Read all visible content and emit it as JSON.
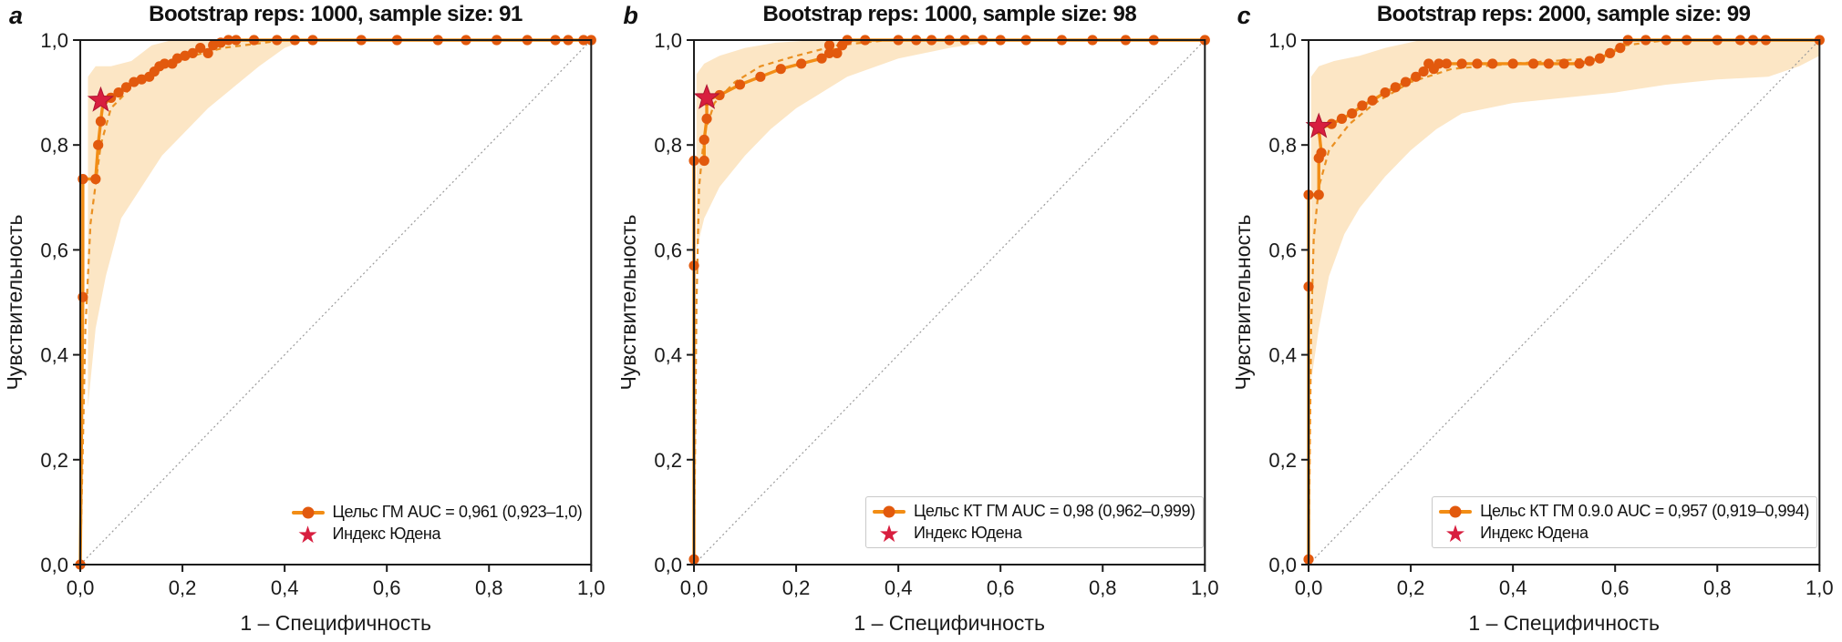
{
  "figure": {
    "type": "roc-figure",
    "description_visible_text_only": true
  },
  "colors": {
    "curve_line": "#F28D15",
    "curve_marker": "#E2590D",
    "smooth_dash": "#E8860F",
    "band_fill": "#F4A229",
    "band_opacity": 0.27,
    "youden_star": "#D81E3F",
    "youden_star_edge": "#AD1432",
    "diagonal": "#9a9a9a",
    "axis": "#1a1a1a"
  },
  "axes_shared": {
    "x_label": "1 – Специфичность",
    "y_label": "Чувствительность",
    "x_tick_labels": [
      "0,0",
      "0,2",
      "0,4",
      "0,6",
      "0,8",
      "1,0"
    ],
    "y_tick_labels": [
      "0,0",
      "0,2",
      "0,4",
      "0,6",
      "0,8",
      "1,0"
    ],
    "x_tick_values": [
      0,
      0.2,
      0.4,
      0.6,
      0.8,
      1.0
    ],
    "y_tick_values": [
      0,
      0.2,
      0.4,
      0.6,
      0.8,
      1.0
    ],
    "xlim": [
      0,
      1
    ],
    "ylim": [
      0,
      1
    ],
    "grid": false,
    "diagonal_reference_line": true
  },
  "chart_data": [
    {
      "type": "line",
      "panel_letter": "a",
      "title": "Bootstrap reps: 1000, sample size: 91",
      "xlabel": "1 – Специфичность",
      "ylabel": "Чувствительность",
      "legend": {
        "position": "lower right",
        "curve_label": "Цельс ГМ AUC = 0,961 (0,923–1,0)",
        "youden_label": "Индекс Юдена"
      },
      "auc_display": "0,961",
      "auc_ci_display": "0,923–1,0",
      "youden_point": [
        0.04,
        0.885
      ],
      "roc_points": [
        [
          0,
          0
        ],
        [
          0.005,
          0.51
        ],
        [
          0.005,
          0.735
        ],
        [
          0.03,
          0.735
        ],
        [
          0.035,
          0.8
        ],
        [
          0.04,
          0.845
        ],
        [
          0.045,
          0.885
        ],
        [
          0.06,
          0.89
        ],
        [
          0.075,
          0.9
        ],
        [
          0.09,
          0.91
        ],
        [
          0.105,
          0.92
        ],
        [
          0.12,
          0.925
        ],
        [
          0.135,
          0.93
        ],
        [
          0.145,
          0.94
        ],
        [
          0.155,
          0.95
        ],
        [
          0.165,
          0.955
        ],
        [
          0.18,
          0.955
        ],
        [
          0.19,
          0.965
        ],
        [
          0.205,
          0.97
        ],
        [
          0.22,
          0.975
        ],
        [
          0.235,
          0.985
        ],
        [
          0.25,
          0.975
        ],
        [
          0.26,
          0.99
        ],
        [
          0.275,
          0.995
        ],
        [
          0.29,
          1.0
        ],
        [
          0.305,
          1.0
        ],
        [
          0.34,
          1.0
        ],
        [
          0.385,
          1.0
        ],
        [
          0.42,
          1.0
        ],
        [
          0.455,
          1.0
        ],
        [
          0.55,
          1.0
        ],
        [
          0.62,
          1.0
        ],
        [
          0.7,
          1.0
        ],
        [
          0.755,
          1.0
        ],
        [
          0.815,
          1.0
        ],
        [
          0.875,
          1.0
        ],
        [
          0.93,
          1.0
        ],
        [
          0.955,
          1.0
        ],
        [
          0.985,
          1.0
        ],
        [
          1.0,
          1.0
        ]
      ],
      "smooth_curve": [
        [
          0,
          0
        ],
        [
          0.01,
          0.45
        ],
        [
          0.02,
          0.65
        ],
        [
          0.04,
          0.8
        ],
        [
          0.06,
          0.87
        ],
        [
          0.1,
          0.91
        ],
        [
          0.15,
          0.945
        ],
        [
          0.2,
          0.965
        ],
        [
          0.28,
          0.985
        ],
        [
          0.4,
          1.0
        ],
        [
          1,
          1
        ]
      ],
      "confidence_band": [
        [
          0.015,
          0.3
        ],
        [
          0.03,
          0.45
        ],
        [
          0.05,
          0.55
        ],
        [
          0.08,
          0.66
        ],
        [
          0.12,
          0.72
        ],
        [
          0.16,
          0.78
        ],
        [
          0.2,
          0.82
        ],
        [
          0.25,
          0.87
        ],
        [
          0.3,
          0.91
        ],
        [
          0.35,
          0.95
        ],
        [
          0.4,
          0.985
        ],
        [
          0.44,
          1.0
        ],
        [
          0.18,
          1.0
        ],
        [
          0.14,
          0.99
        ],
        [
          0.1,
          0.96
        ],
        [
          0.06,
          0.95
        ],
        [
          0.03,
          0.95
        ],
        [
          0.015,
          0.93
        ]
      ]
    },
    {
      "type": "line",
      "panel_letter": "b",
      "title": "Bootstrap reps: 1000, sample size: 98",
      "xlabel": "1 – Специфичность",
      "ylabel": "Чувствительность",
      "legend": {
        "position": "lower right",
        "curve_label": "Цельс КТ ГМ AUC = 0,98 (0,962–0,999)",
        "youden_label": "Индекс Юдена"
      },
      "auc_display": "0,98",
      "auc_ci_display": "0,962–0,999",
      "youden_point": [
        0.025,
        0.89
      ],
      "roc_points": [
        [
          0,
          0.01
        ],
        [
          0,
          0.57
        ],
        [
          0,
          0.77
        ],
        [
          0.02,
          0.77
        ],
        [
          0.02,
          0.81
        ],
        [
          0.025,
          0.85
        ],
        [
          0.025,
          0.885
        ],
        [
          0.05,
          0.895
        ],
        [
          0.09,
          0.915
        ],
        [
          0.13,
          0.93
        ],
        [
          0.17,
          0.945
        ],
        [
          0.21,
          0.955
        ],
        [
          0.25,
          0.965
        ],
        [
          0.265,
          0.975
        ],
        [
          0.265,
          0.99
        ],
        [
          0.28,
          0.975
        ],
        [
          0.29,
          0.99
        ],
        [
          0.3,
          1.0
        ],
        [
          0.335,
          1.0
        ],
        [
          0.4,
          1.0
        ],
        [
          0.435,
          1.0
        ],
        [
          0.465,
          1.0
        ],
        [
          0.5,
          1.0
        ],
        [
          0.53,
          1.0
        ],
        [
          0.565,
          1.0
        ],
        [
          0.6,
          1.0
        ],
        [
          0.65,
          1.0
        ],
        [
          0.72,
          1.0
        ],
        [
          0.78,
          1.0
        ],
        [
          0.845,
          1.0
        ],
        [
          0.9,
          1.0
        ],
        [
          1.0,
          1.0
        ]
      ],
      "smooth_curve": [
        [
          0,
          0
        ],
        [
          0.005,
          0.5
        ],
        [
          0.01,
          0.72
        ],
        [
          0.02,
          0.82
        ],
        [
          0.04,
          0.88
        ],
        [
          0.08,
          0.92
        ],
        [
          0.13,
          0.95
        ],
        [
          0.2,
          0.97
        ],
        [
          0.28,
          0.99
        ],
        [
          0.38,
          1.0
        ],
        [
          1,
          1
        ]
      ],
      "confidence_band": [
        [
          0.005,
          0.6
        ],
        [
          0.02,
          0.66
        ],
        [
          0.05,
          0.72
        ],
        [
          0.1,
          0.78
        ],
        [
          0.15,
          0.83
        ],
        [
          0.2,
          0.87
        ],
        [
          0.25,
          0.9
        ],
        [
          0.3,
          0.93
        ],
        [
          0.4,
          0.965
        ],
        [
          0.5,
          0.985
        ],
        [
          0.6,
          1.0
        ],
        [
          0.24,
          1.0
        ],
        [
          0.16,
          0.995
        ],
        [
          0.1,
          0.985
        ],
        [
          0.05,
          0.97
        ],
        [
          0.02,
          0.955
        ],
        [
          0.005,
          0.935
        ]
      ]
    },
    {
      "type": "line",
      "panel_letter": "c",
      "title": "Bootstrap reps: 2000, sample size: 99",
      "xlabel": "1 – Специфичность",
      "ylabel": "Чувствительность",
      "legend": {
        "position": "lower right",
        "curve_label": "Цельс КТ ГМ 0.9.0 AUC = 0,957 (0,919–0,994)",
        "youden_label": "Индекс Юдена"
      },
      "auc_display": "0,957",
      "auc_ci_display": "0,919–0,994",
      "youden_point": [
        0.02,
        0.835
      ],
      "roc_points": [
        [
          0,
          0.01
        ],
        [
          0,
          0.53
        ],
        [
          0,
          0.705
        ],
        [
          0.02,
          0.705
        ],
        [
          0.02,
          0.775
        ],
        [
          0.025,
          0.785
        ],
        [
          0.02,
          0.83
        ],
        [
          0.045,
          0.84
        ],
        [
          0.065,
          0.85
        ],
        [
          0.085,
          0.86
        ],
        [
          0.105,
          0.875
        ],
        [
          0.125,
          0.885
        ],
        [
          0.15,
          0.9
        ],
        [
          0.17,
          0.91
        ],
        [
          0.19,
          0.92
        ],
        [
          0.21,
          0.93
        ],
        [
          0.225,
          0.94
        ],
        [
          0.235,
          0.955
        ],
        [
          0.245,
          0.945
        ],
        [
          0.255,
          0.955
        ],
        [
          0.27,
          0.955
        ],
        [
          0.3,
          0.955
        ],
        [
          0.33,
          0.955
        ],
        [
          0.36,
          0.955
        ],
        [
          0.4,
          0.955
        ],
        [
          0.44,
          0.955
        ],
        [
          0.47,
          0.955
        ],
        [
          0.5,
          0.955
        ],
        [
          0.53,
          0.955
        ],
        [
          0.55,
          0.96
        ],
        [
          0.57,
          0.965
        ],
        [
          0.59,
          0.975
        ],
        [
          0.61,
          0.985
        ],
        [
          0.625,
          1.0
        ],
        [
          0.66,
          1.0
        ],
        [
          0.7,
          1.0
        ],
        [
          0.74,
          1.0
        ],
        [
          0.8,
          1.0
        ],
        [
          0.845,
          1.0
        ],
        [
          0.87,
          1.0
        ],
        [
          0.895,
          1.0
        ],
        [
          1.0,
          1.0
        ]
      ],
      "smooth_curve": [
        [
          0,
          0
        ],
        [
          0.005,
          0.45
        ],
        [
          0.01,
          0.62
        ],
        [
          0.02,
          0.72
        ],
        [
          0.04,
          0.79
        ],
        [
          0.08,
          0.84
        ],
        [
          0.13,
          0.88
        ],
        [
          0.2,
          0.92
        ],
        [
          0.28,
          0.945
        ],
        [
          0.4,
          0.955
        ],
        [
          0.55,
          0.965
        ],
        [
          0.62,
          0.99
        ],
        [
          0.7,
          1.0
        ],
        [
          1,
          1
        ]
      ],
      "confidence_band": [
        [
          0.005,
          0.35
        ],
        [
          0.02,
          0.45
        ],
        [
          0.04,
          0.55
        ],
        [
          0.07,
          0.63
        ],
        [
          0.1,
          0.68
        ],
        [
          0.15,
          0.74
        ],
        [
          0.2,
          0.79
        ],
        [
          0.25,
          0.83
        ],
        [
          0.3,
          0.86
        ],
        [
          0.4,
          0.88
        ],
        [
          0.5,
          0.89
        ],
        [
          0.6,
          0.9
        ],
        [
          0.7,
          0.915
        ],
        [
          0.8,
          0.925
        ],
        [
          0.9,
          0.93
        ],
        [
          0.96,
          0.95
        ],
        [
          1.0,
          0.97
        ],
        [
          1.0,
          1.0
        ],
        [
          0.22,
          1.0
        ],
        [
          0.15,
          0.985
        ],
        [
          0.1,
          0.97
        ],
        [
          0.05,
          0.96
        ],
        [
          0.02,
          0.95
        ],
        [
          0.005,
          0.93
        ]
      ]
    }
  ]
}
